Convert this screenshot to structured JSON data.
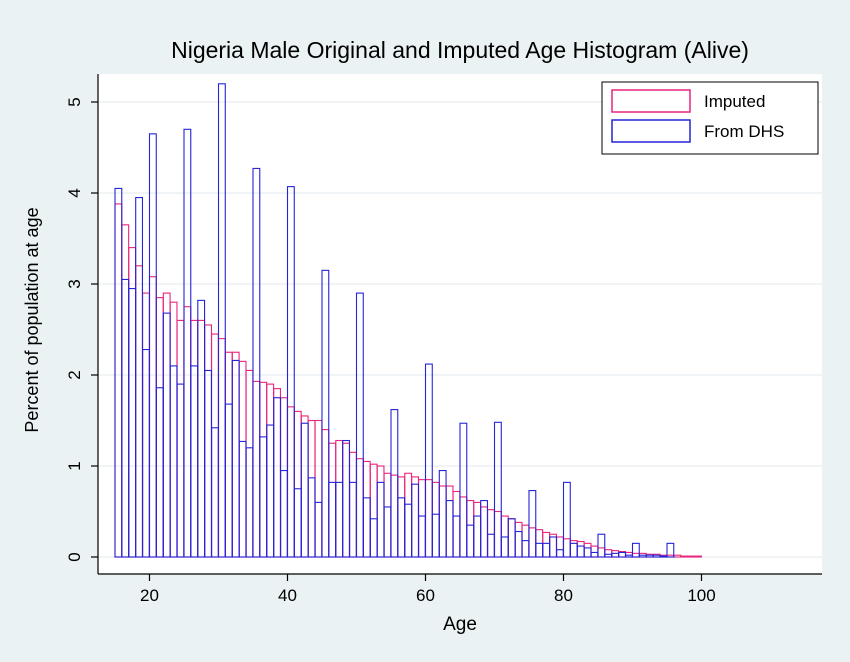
{
  "chart_data": {
    "type": "bar",
    "title": "Nigeria Male Original and Imputed Age Histogram (Alive)",
    "xlabel": "Age",
    "ylabel": "Percent of population at age",
    "xlim": [
      15,
      100
    ],
    "ylim": [
      0,
      5.3
    ],
    "xticks": [
      20,
      40,
      60,
      80,
      100
    ],
    "yticks": [
      0,
      1,
      2,
      3,
      4,
      5
    ],
    "grid": true,
    "legend_position": "top-right",
    "series": [
      {
        "name": "Imputed",
        "color": "#e8247c",
        "x": [
          15,
          16,
          17,
          18,
          19,
          20,
          21,
          22,
          23,
          24,
          25,
          26,
          27,
          28,
          29,
          30,
          31,
          32,
          33,
          34,
          35,
          36,
          37,
          38,
          39,
          40,
          41,
          42,
          43,
          44,
          45,
          46,
          47,
          48,
          49,
          50,
          51,
          52,
          53,
          54,
          55,
          56,
          57,
          58,
          59,
          60,
          61,
          62,
          63,
          64,
          65,
          66,
          67,
          68,
          69,
          70,
          71,
          72,
          73,
          74,
          75,
          76,
          77,
          78,
          79,
          80,
          81,
          82,
          83,
          84,
          85,
          86,
          87,
          88,
          89,
          90,
          91,
          92,
          93,
          94,
          95,
          96,
          97,
          98,
          99
        ],
        "values": [
          3.88,
          3.65,
          3.4,
          3.2,
          2.9,
          3.08,
          2.85,
          2.9,
          2.8,
          2.6,
          2.75,
          2.6,
          2.6,
          2.55,
          2.45,
          2.4,
          2.25,
          2.25,
          2.15,
          2.05,
          1.93,
          1.92,
          1.9,
          1.85,
          1.75,
          1.65,
          1.6,
          1.55,
          1.5,
          1.5,
          1.4,
          1.25,
          1.28,
          1.25,
          1.15,
          1.08,
          1.05,
          1.02,
          1.0,
          0.92,
          0.9,
          0.88,
          0.92,
          0.88,
          0.85,
          0.85,
          0.82,
          0.78,
          0.78,
          0.72,
          0.66,
          0.62,
          0.6,
          0.55,
          0.52,
          0.5,
          0.45,
          0.42,
          0.38,
          0.35,
          0.32,
          0.3,
          0.27,
          0.25,
          0.22,
          0.2,
          0.18,
          0.17,
          0.15,
          0.12,
          0.1,
          0.08,
          0.07,
          0.06,
          0.05,
          0.04,
          0.04,
          0.03,
          0.03,
          0.02,
          0.02,
          0.02,
          0.01,
          0.01,
          0.01
        ]
      },
      {
        "name": "From DHS",
        "color": "#2424d8",
        "x": [
          15,
          16,
          17,
          18,
          19,
          20,
          21,
          22,
          23,
          24,
          25,
          26,
          27,
          28,
          29,
          30,
          31,
          32,
          33,
          34,
          35,
          36,
          37,
          38,
          39,
          40,
          41,
          42,
          43,
          44,
          45,
          46,
          47,
          48,
          49,
          50,
          51,
          52,
          53,
          54,
          55,
          56,
          57,
          58,
          59,
          60,
          61,
          62,
          63,
          64,
          65,
          66,
          67,
          68,
          69,
          70,
          71,
          72,
          73,
          74,
          75,
          76,
          77,
          78,
          79,
          80,
          81,
          82,
          83,
          84,
          85,
          86,
          87,
          88,
          89,
          90,
          91,
          92,
          93,
          94,
          95
        ],
        "values": [
          4.05,
          3.05,
          2.95,
          3.95,
          2.28,
          4.65,
          1.86,
          2.68,
          2.1,
          1.9,
          4.7,
          2.1,
          2.82,
          2.05,
          1.42,
          5.2,
          1.68,
          2.16,
          1.27,
          1.2,
          4.27,
          1.32,
          1.45,
          1.75,
          0.95,
          4.07,
          0.75,
          1.47,
          0.87,
          0.6,
          3.15,
          0.82,
          0.82,
          1.28,
          0.82,
          2.9,
          0.65,
          0.42,
          0.82,
          0.55,
          1.62,
          0.65,
          0.58,
          0.8,
          0.45,
          2.12,
          0.47,
          0.95,
          0.62,
          0.45,
          1.47,
          0.35,
          0.45,
          0.62,
          0.25,
          1.48,
          0.22,
          0.42,
          0.28,
          0.18,
          0.73,
          0.15,
          0.15,
          0.22,
          0.08,
          0.82,
          0.15,
          0.12,
          0.1,
          0.05,
          0.25,
          0.03,
          0.04,
          0.05,
          0.02,
          0.15,
          0.02,
          0.02,
          0.02,
          0.01,
          0.15
        ]
      }
    ]
  }
}
